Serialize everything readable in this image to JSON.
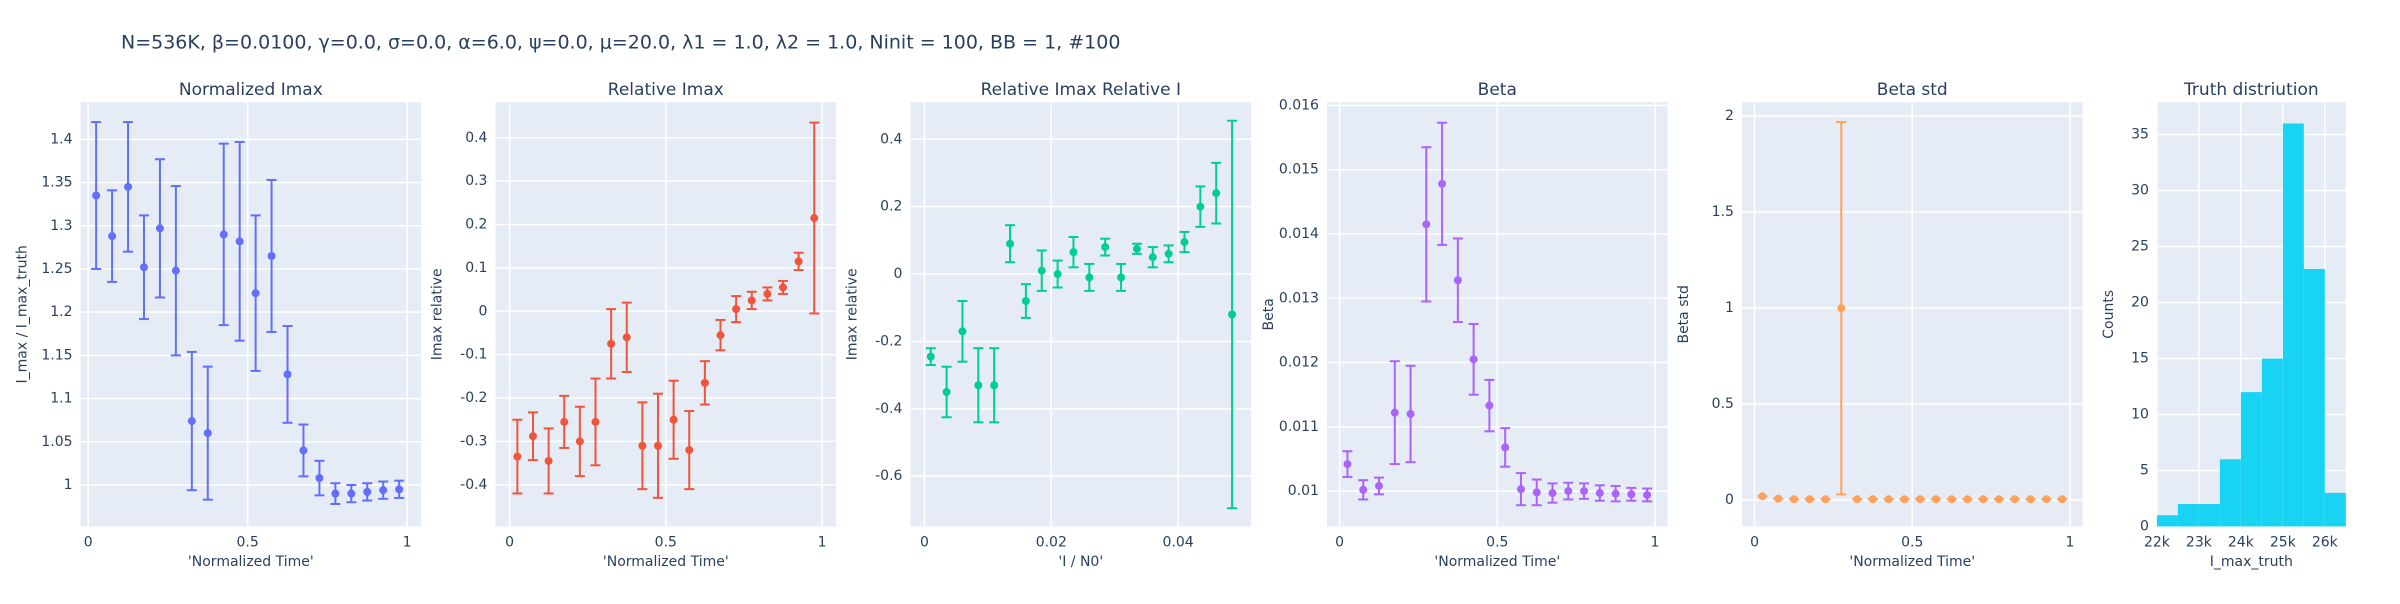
{
  "title": "N=536K, β=0.0100, γ=0.0, σ=0.0,  α=6.0, ψ=0.0, μ=20.0, λ1 = 1.0, λ2 = 1.0, Ninit = 100, BB = 1, #100",
  "chart_data": [
    {
      "type": "scatter",
      "title": "Normalized Imax",
      "xlabel": "'Normalized Time'",
      "ylabel": "I_max / I_max_truth",
      "color": "#636efa",
      "x": [
        0.025,
        0.075,
        0.125,
        0.175,
        0.225,
        0.275,
        0.325,
        0.375,
        0.425,
        0.475,
        0.525,
        0.575,
        0.625,
        0.675,
        0.725,
        0.775,
        0.825,
        0.875,
        0.925,
        0.975
      ],
      "values": [
        1.335,
        1.288,
        1.345,
        1.252,
        1.297,
        1.248,
        1.074,
        1.06,
        1.29,
        1.282,
        1.222,
        1.265,
        1.128,
        1.04,
        1.008,
        0.99,
        0.99,
        0.992,
        0.994,
        0.995
      ],
      "errors": [
        0.085,
        0.053,
        0.075,
        0.06,
        0.08,
        0.098,
        0.08,
        0.077,
        0.105,
        0.115,
        0.09,
        0.088,
        0.056,
        0.03,
        0.02,
        0.012,
        0.01,
        0.01,
        0.01,
        0.01
      ],
      "xlim": [
        -0.024,
        1.044
      ],
      "ylim": [
        0.952,
        1.443
      ],
      "xticks": [
        0,
        0.5,
        1
      ],
      "yticks": [
        1,
        1.05,
        1.1,
        1.15,
        1.2,
        1.25,
        1.3,
        1.35,
        1.4
      ]
    },
    {
      "type": "scatter",
      "title": "Relative Imax",
      "xlabel": "'Normalized Time'",
      "ylabel": "Imax relative",
      "color": "#ef553b",
      "x": [
        0.025,
        0.075,
        0.125,
        0.175,
        0.225,
        0.275,
        0.325,
        0.375,
        0.425,
        0.475,
        0.525,
        0.575,
        0.625,
        0.675,
        0.725,
        0.775,
        0.825,
        0.875,
        0.925,
        0.975
      ],
      "values": [
        -0.335,
        -0.288,
        -0.345,
        -0.255,
        -0.3,
        -0.255,
        -0.075,
        -0.06,
        -0.31,
        -0.31,
        -0.25,
        -0.32,
        -0.165,
        -0.055,
        0.005,
        0.025,
        0.04,
        0.055,
        0.115,
        0.215
      ],
      "errors": [
        0.085,
        0.055,
        0.075,
        0.06,
        0.08,
        0.1,
        0.08,
        0.08,
        0.1,
        0.12,
        0.09,
        0.09,
        0.05,
        0.035,
        0.03,
        0.02,
        0.015,
        0.015,
        0.02,
        0.22
      ],
      "xlim": [
        -0.045,
        1.045
      ],
      "ylim": [
        -0.496,
        0.482
      ],
      "xticks": [
        0,
        0.5,
        1
      ],
      "yticks": [
        -0.4,
        -0.3,
        -0.2,
        -0.1,
        0,
        0.1,
        0.2,
        0.3,
        0.4
      ]
    },
    {
      "type": "scatter",
      "title": "Relative Imax Relative I",
      "xlabel": "'I / N0'",
      "ylabel": "Imax relative",
      "color": "#00cc96",
      "x": [
        0.001,
        0.0035,
        0.006,
        0.0085,
        0.011,
        0.0135,
        0.016,
        0.0185,
        0.021,
        0.0235,
        0.026,
        0.0285,
        0.031,
        0.0335,
        0.036,
        0.0385,
        0.041,
        0.0435,
        0.046,
        0.0485
      ],
      "values": [
        -0.245,
        -0.35,
        -0.17,
        -0.33,
        -0.33,
        0.09,
        -0.08,
        0.01,
        0.0,
        0.065,
        -0.01,
        0.08,
        -0.01,
        0.075,
        0.05,
        0.06,
        0.095,
        0.2,
        0.24,
        -0.12
      ],
      "errors": [
        0.025,
        0.075,
        0.09,
        0.11,
        0.11,
        0.055,
        0.05,
        0.06,
        0.04,
        0.045,
        0.04,
        0.025,
        0.04,
        0.015,
        0.03,
        0.025,
        0.03,
        0.06,
        0.09,
        0.575
      ],
      "xlim": [
        -0.0022,
        0.0515
      ],
      "ylim": [
        -0.749,
        0.51
      ],
      "xticks": [
        0,
        0.02,
        0.04
      ],
      "yticks": [
        -0.6,
        -0.4,
        -0.2,
        0,
        0.2,
        0.4
      ]
    },
    {
      "type": "scatter",
      "title": "Beta",
      "xlabel": "'Normalized Time'",
      "ylabel": "Beta",
      "color": "#ab63fa",
      "x": [
        0.025,
        0.075,
        0.125,
        0.175,
        0.225,
        0.275,
        0.325,
        0.375,
        0.425,
        0.475,
        0.525,
        0.575,
        0.625,
        0.675,
        0.725,
        0.775,
        0.825,
        0.875,
        0.925,
        0.975
      ],
      "values": [
        0.01042,
        0.01002,
        0.01008,
        0.01122,
        0.0112,
        0.01415,
        0.01478,
        0.01328,
        0.01205,
        0.01133,
        0.01068,
        0.01003,
        0.00998,
        0.00997,
        0.01,
        0.01,
        0.00997,
        0.00996,
        0.00995,
        0.00994
      ],
      "errors": [
        0.0002,
        0.00015,
        0.00013,
        0.0008,
        0.00075,
        0.0012,
        0.00095,
        0.00065,
        0.00055,
        0.0004,
        0.0003,
        0.00025,
        0.0002,
        0.00015,
        0.00013,
        0.00012,
        0.00012,
        0.00012,
        0.0001,
        0.0001
      ],
      "xlim": [
        -0.04,
        1.04
      ],
      "ylim": [
        0.00945,
        0.01605
      ],
      "xticks": [
        0,
        0.5,
        1
      ],
      "yticks": [
        0.01,
        0.011,
        0.012,
        0.013,
        0.014,
        0.015,
        0.016
      ]
    },
    {
      "type": "scatter",
      "title": "Beta std",
      "xlabel": "'Normalized Time'",
      "ylabel": "Beta std",
      "color": "#ffa15a",
      "x": [
        0.025,
        0.075,
        0.125,
        0.175,
        0.225,
        0.275,
        0.325,
        0.375,
        0.425,
        0.475,
        0.525,
        0.575,
        0.625,
        0.675,
        0.725,
        0.775,
        0.825,
        0.875,
        0.925,
        0.975
      ],
      "values": [
        0.02,
        0.008,
        0.005,
        0.005,
        0.005,
        1.0,
        0.005,
        0.005,
        0.005,
        0.005,
        0.005,
        0.005,
        0.005,
        0.005,
        0.005,
        0.005,
        0.005,
        0.005,
        0.005,
        0.005
      ],
      "errors": [
        0,
        0,
        0,
        0,
        0,
        0.97,
        0,
        0,
        0,
        0,
        0,
        0,
        0,
        0,
        0,
        0,
        0,
        0,
        0,
        0
      ],
      "xlim": [
        -0.04,
        1.04
      ],
      "ylim": [
        -0.137,
        2.073
      ],
      "xticks": [
        0,
        0.5,
        1
      ],
      "yticks": [
        0,
        0.5,
        1,
        1.5,
        2
      ]
    },
    {
      "type": "histogram",
      "title": "Truth distriution",
      "xlabel": "I_max_truth",
      "ylabel": "Counts",
      "color": "#19d3f3",
      "bins": [
        22000,
        22500,
        23000,
        23500,
        24000,
        24500,
        25000,
        25500,
        26000,
        26500
      ],
      "counts": [
        1,
        2,
        2,
        6,
        12,
        15,
        36,
        23,
        3
      ],
      "xlim": [
        22000,
        26500
      ],
      "ylim": [
        0,
        37.9
      ],
      "xticks": [
        {
          "value": 22000,
          "label": "22k"
        },
        {
          "value": 23000,
          "label": "23k"
        },
        {
          "value": 24000,
          "label": "24k"
        },
        {
          "value": 25000,
          "label": "25k"
        },
        {
          "value": 26000,
          "label": "26k"
        }
      ],
      "yticks": [
        0,
        5,
        10,
        15,
        20,
        25,
        30,
        35
      ]
    }
  ]
}
